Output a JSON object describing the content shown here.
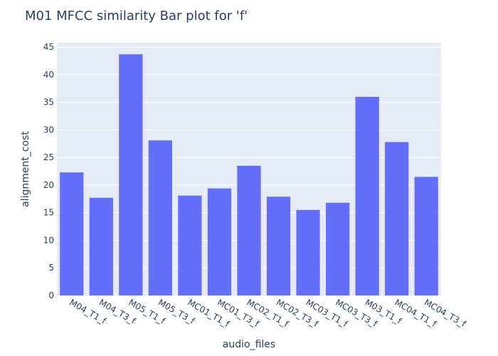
{
  "chart_data": {
    "type": "bar",
    "title": "M01 MFCC similarity Bar plot for 'f'",
    "xlabel": "audio_files",
    "ylabel": "alignment_cost",
    "categories": [
      "M04_T1_f",
      "M04_T3_f",
      "M05_T1_f",
      "M05_T3_f",
      "MC01_T1_f",
      "MC01_T3_f",
      "MC02_T1_f",
      "MC02_T3_f",
      "MC03_T1_f",
      "MC03_T3_f",
      "M03_T1_f",
      "MC04_T1_f",
      "MC04_T3_f"
    ],
    "values": [
      22.3,
      17.7,
      43.7,
      28.1,
      18.1,
      19.4,
      23.5,
      17.9,
      15.5,
      16.8,
      36.0,
      27.8,
      21.5
    ],
    "ylim": [
      0,
      45.8
    ],
    "yticks": [
      0,
      5,
      10,
      15,
      20,
      25,
      30,
      35,
      40,
      45
    ],
    "grid": true,
    "colors": {
      "bar": "#636efa",
      "plot_bg": "#e5ecf6",
      "grid": "#ffffff",
      "text": "#2a3f5f"
    }
  }
}
